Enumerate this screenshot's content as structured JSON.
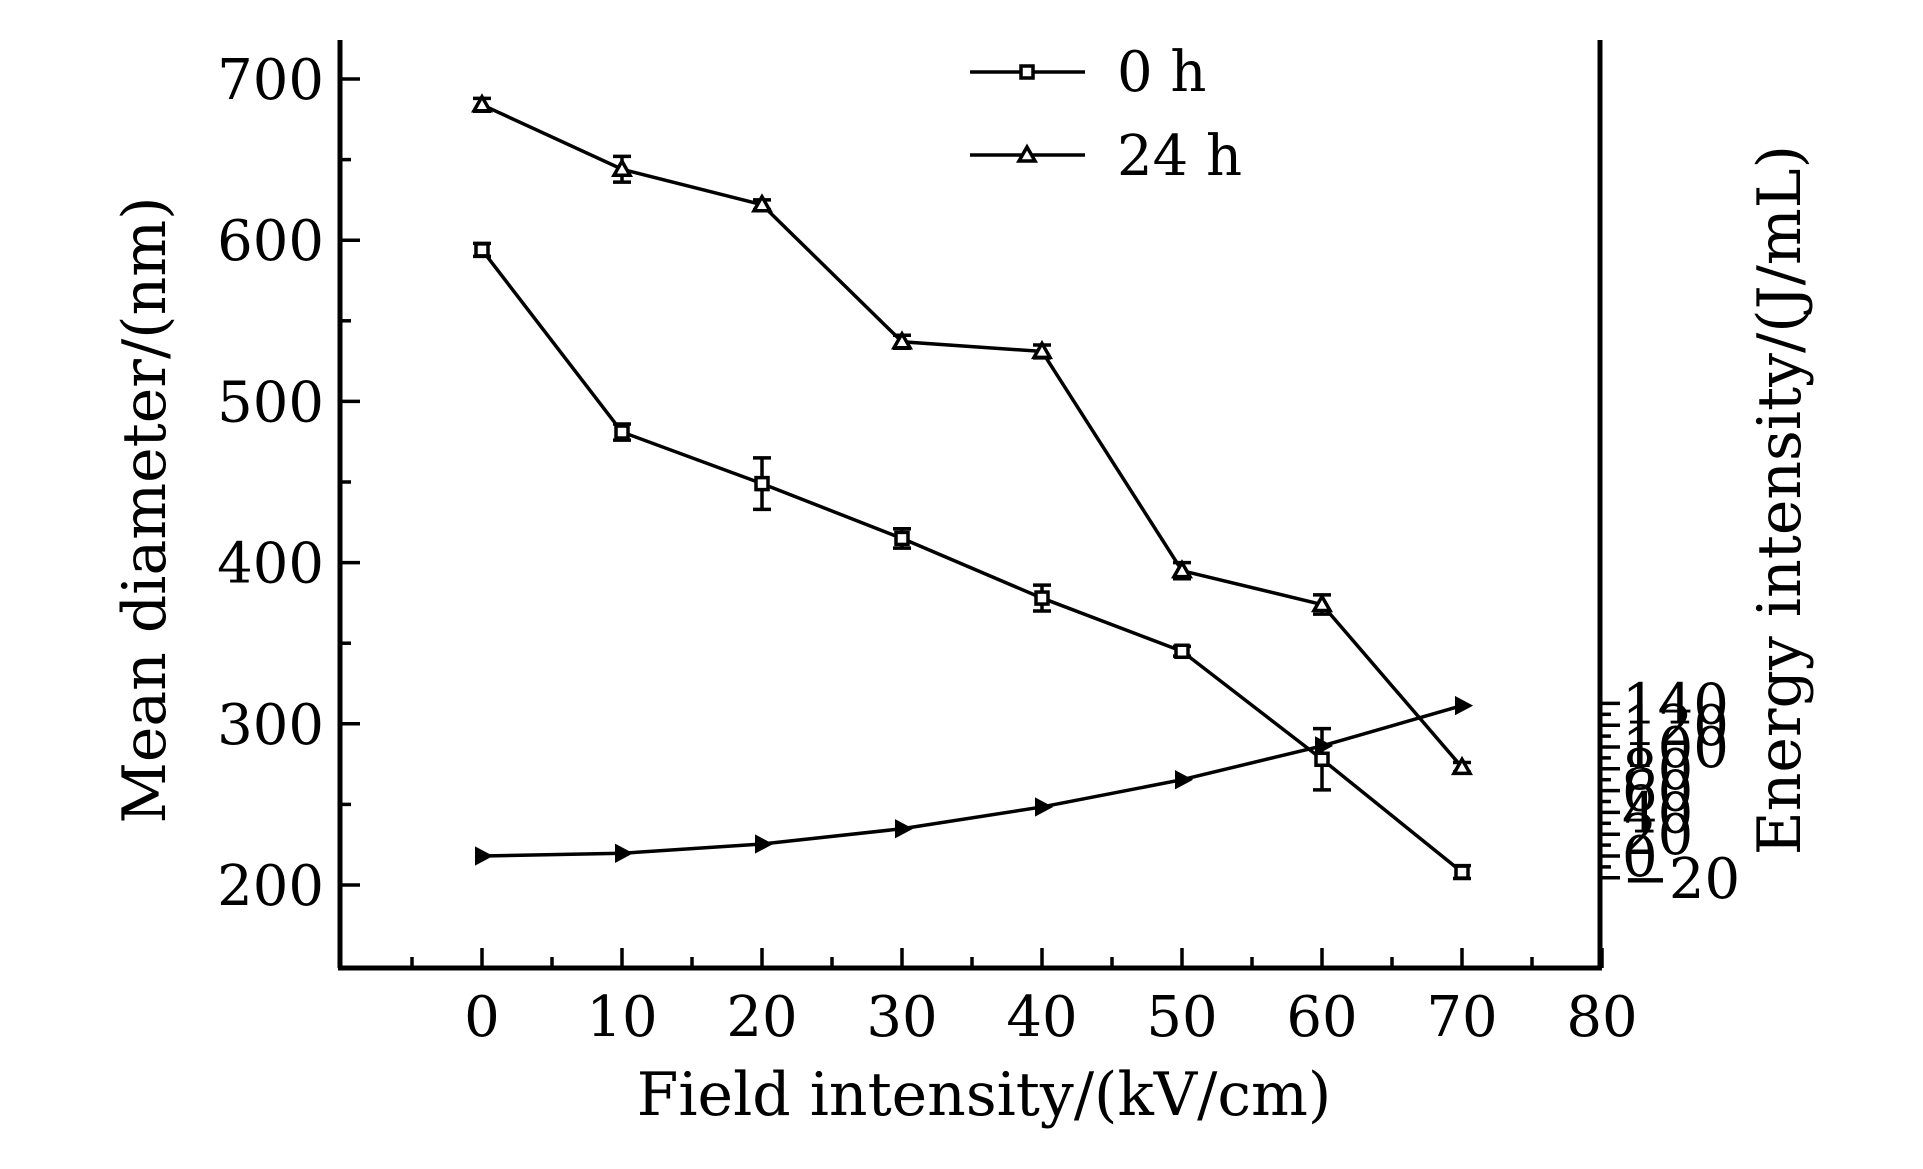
{
  "chart_data": {
    "type": "line",
    "xlabel": "Field intensity/(kV/cm)",
    "ylabel_left": "Mean diameter/(nm)",
    "ylabel_right": "Energy intensity/(J/mL)",
    "xlim": [
      -10,
      80
    ],
    "ylim_left": [
      150,
      725
    ],
    "ylim_right": [
      -22,
      150
    ],
    "x_ticks": [
      0,
      10,
      20,
      30,
      40,
      50,
      60,
      70,
      80
    ],
    "y_left_ticks": [
      200,
      300,
      400,
      500,
      600,
      700
    ],
    "y_right_ticks": [
      -20,
      0,
      20,
      40,
      60,
      80,
      100,
      120,
      140
    ],
    "x_tick_labels": [
      "0",
      "10",
      "20",
      "30",
      "40",
      "50",
      "60",
      "70",
      "80"
    ],
    "y_left_tick_labels": [
      "200",
      "300",
      "400",
      "500",
      "600",
      "700"
    ],
    "y_right_tick_labels": [
      "−20",
      "0",
      "20",
      "40",
      "60",
      "80",
      "100",
      "120",
      "140"
    ],
    "legend": [
      "0 h",
      "24 h"
    ],
    "legend_position": "top-center",
    "x": [
      0,
      10,
      20,
      30,
      40,
      50,
      60,
      70
    ],
    "series": [
      {
        "name": "0 h",
        "axis": "left",
        "marker": "square",
        "values": [
          594,
          481,
          449,
          415,
          378,
          345,
          278,
          208
        ],
        "errors": [
          4,
          5,
          16,
          6,
          8,
          3,
          19,
          4
        ]
      },
      {
        "name": "24 h",
        "axis": "left",
        "marker": "triangle",
        "values": [
          684,
          644,
          622,
          537,
          531,
          395,
          374,
          273
        ],
        "errors": [
          4,
          8,
          3,
          4,
          4,
          5,
          6,
          3
        ]
      },
      {
        "name": "Energy intensity",
        "axis": "right",
        "marker": "right-triangle",
        "values": [
          0,
          2.5,
          11,
          25,
          45,
          70,
          101,
          138
        ],
        "errors": []
      }
    ]
  }
}
